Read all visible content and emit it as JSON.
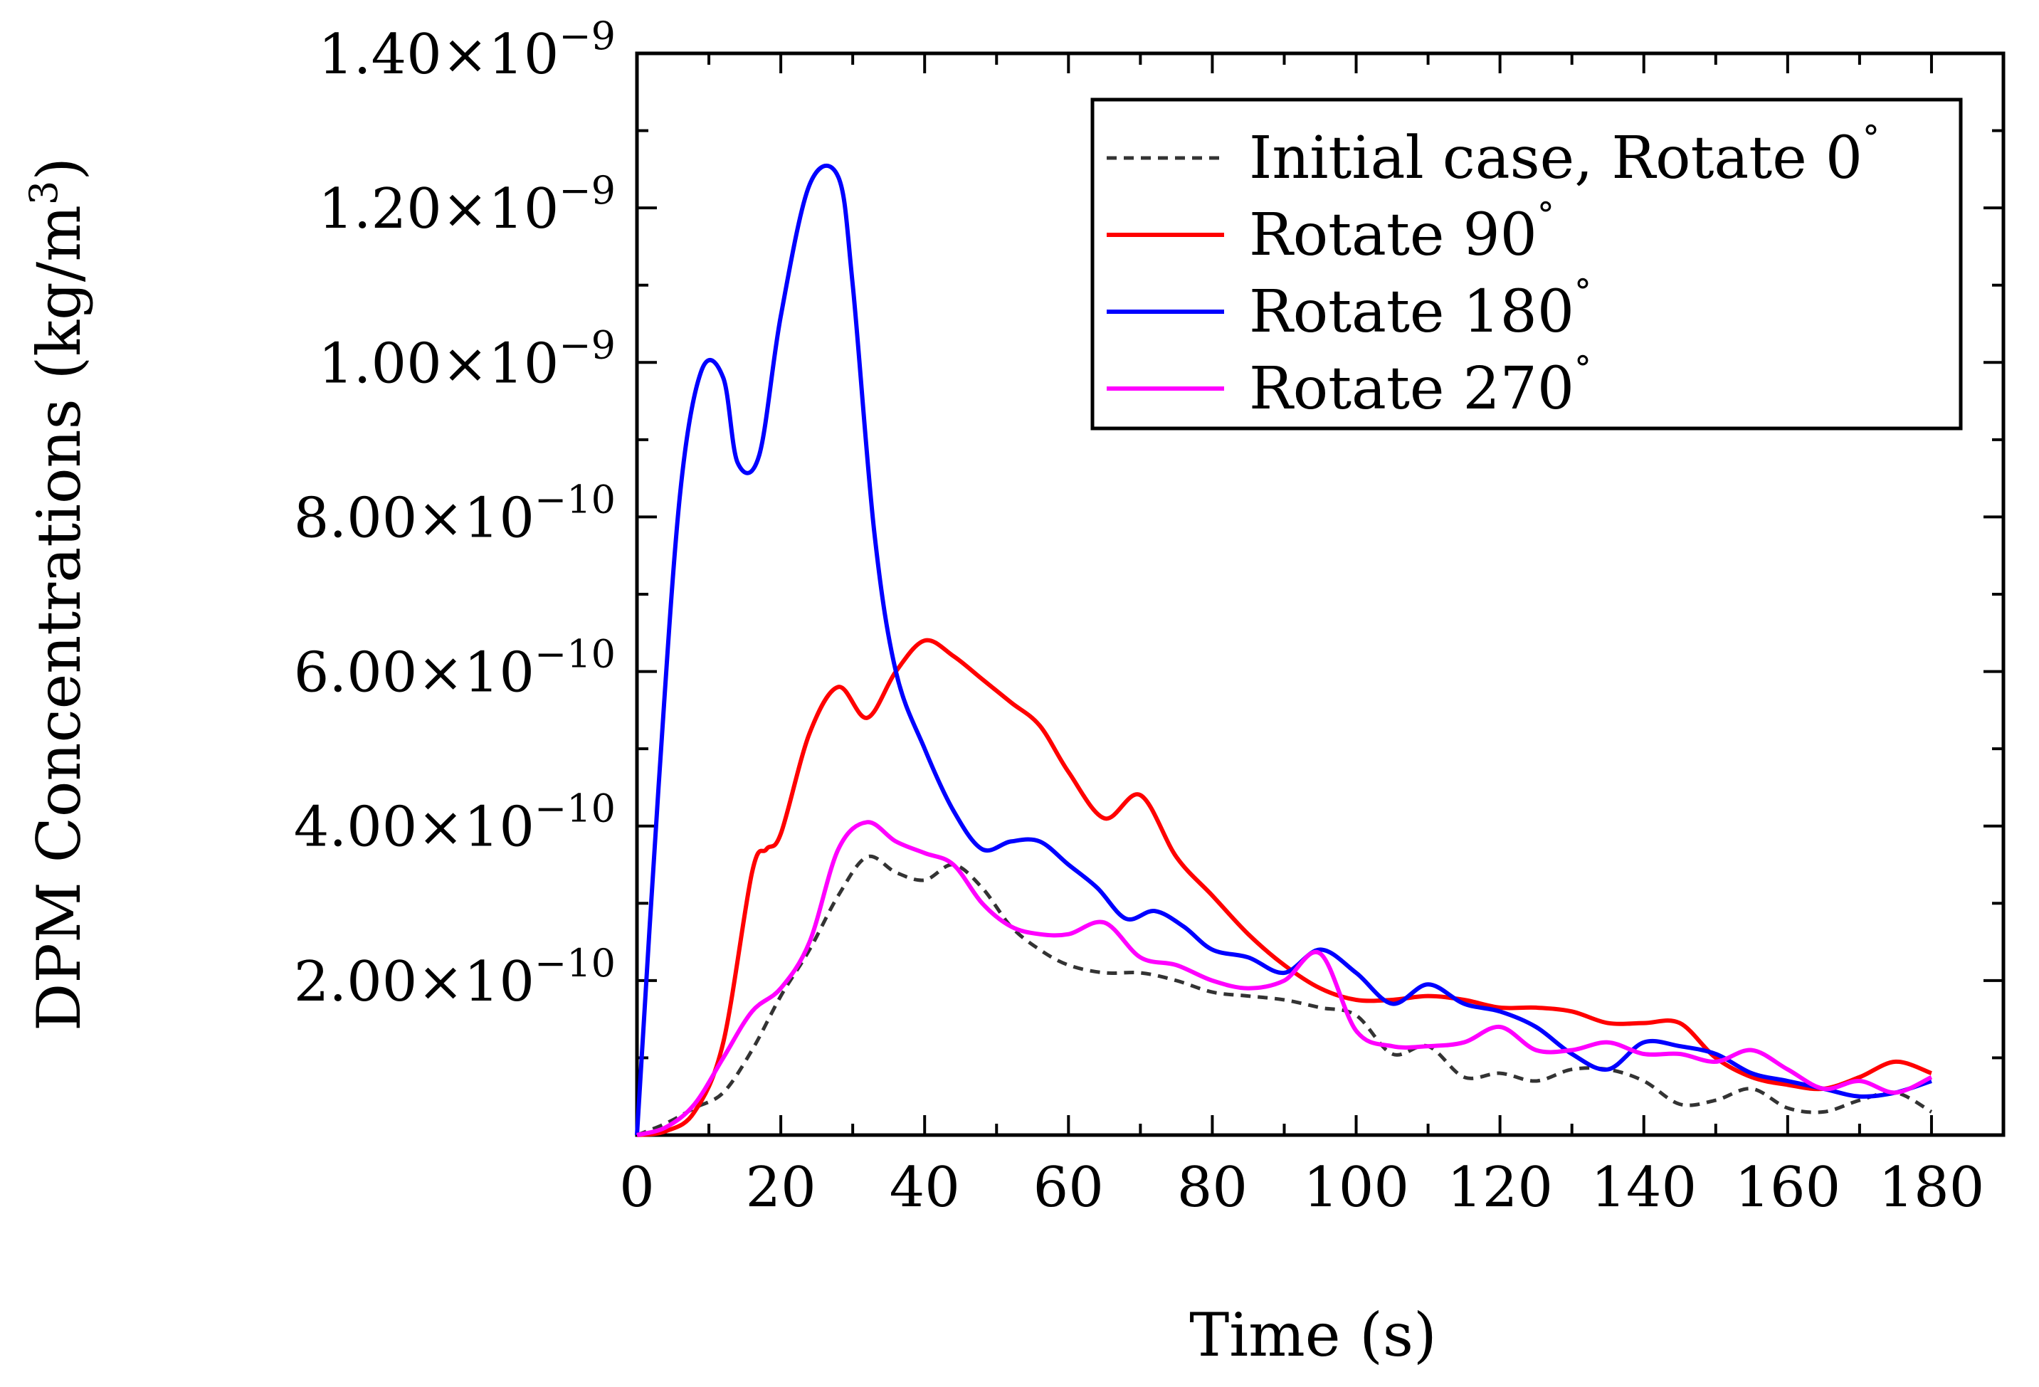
{
  "chart_data": {
    "type": "line",
    "title": "",
    "xlabel": "Time (s)",
    "ylabel_main": "DPM Concentrations (kg/m",
    "ylabel_sup": "3",
    "ylabel_close": ")",
    "xlim": [
      0,
      190
    ],
    "ylim": [
      0,
      1.4e-09
    ],
    "x_ticks": [
      0,
      20,
      40,
      60,
      80,
      100,
      120,
      140,
      160,
      180
    ],
    "x_tick_labels": [
      "0",
      "20",
      "40",
      "60",
      "80",
      "100",
      "120",
      "140",
      "160",
      "180"
    ],
    "y_ticks": [
      {
        "value": 2e-10,
        "mantissa": "2.00",
        "times": "×",
        "base": "10",
        "exponent": "−10"
      },
      {
        "value": 4e-10,
        "mantissa": "4.00",
        "times": "×",
        "base": "10",
        "exponent": "−10"
      },
      {
        "value": 6e-10,
        "mantissa": "6.00",
        "times": "×",
        "base": "10",
        "exponent": "−10"
      },
      {
        "value": 8e-10,
        "mantissa": "8.00",
        "times": "×",
        "base": "10",
        "exponent": "−10"
      },
      {
        "value": 1e-09,
        "mantissa": "1.00",
        "times": "×",
        "base": "10",
        "exponent": "−9"
      },
      {
        "value": 1.2e-09,
        "mantissa": "1.20",
        "times": "×",
        "base": "10",
        "exponent": "−9"
      },
      {
        "value": 1.4e-09,
        "mantissa": "1.40",
        "times": "×",
        "base": "10",
        "exponent": "−9"
      }
    ],
    "legend_position": "top-right",
    "series": [
      {
        "name": "Initial case, Rotate 0",
        "degree": "°",
        "color": "#333333",
        "dash": true,
        "x": [
          0,
          4,
          8,
          12,
          16,
          20,
          24,
          28,
          32,
          36,
          40,
          44,
          48,
          52,
          56,
          60,
          65,
          70,
          75,
          80,
          85,
          90,
          95,
          100,
          105,
          110,
          115,
          120,
          125,
          130,
          135,
          140,
          145,
          150,
          155,
          160,
          165,
          170,
          175,
          180
        ],
        "y": [
          0,
          1.5e-11,
          3.5e-11,
          5.5e-11,
          1.1e-10,
          1.8e-10,
          2.4e-10,
          3.1e-10,
          3.6e-10,
          3.4e-10,
          3.3e-10,
          3.5e-10,
          3.2e-10,
          2.7e-10,
          2.4e-10,
          2.2e-10,
          2.1e-10,
          2.1e-10,
          2e-10,
          1.85e-10,
          1.8e-10,
          1.75e-10,
          1.65e-10,
          1.55e-10,
          1.05e-10,
          1.15e-10,
          7.5e-11,
          8e-11,
          7e-11,
          8.5e-11,
          8.5e-11,
          7e-11,
          4e-11,
          4.5e-11,
          6e-11,
          3.5e-11,
          3e-11,
          4.5e-11,
          5.5e-11,
          3e-11
        ]
      },
      {
        "name": "Rotate 90",
        "degree": "°",
        "color": "#ff0000",
        "dash": false,
        "x": [
          0,
          4,
          8,
          12,
          16,
          18,
          20,
          24,
          28,
          32,
          36,
          40,
          44,
          48,
          52,
          56,
          60,
          65,
          70,
          75,
          80,
          85,
          90,
          95,
          100,
          105,
          110,
          115,
          120,
          125,
          130,
          135,
          140,
          145,
          150,
          155,
          160,
          165,
          170,
          175,
          180
        ],
        "y": [
          0,
          5e-12,
          3e-11,
          1.2e-10,
          3.4e-10,
          3.7e-10,
          3.9e-10,
          5.2e-10,
          5.8e-10,
          5.4e-10,
          6e-10,
          6.4e-10,
          6.2e-10,
          5.9e-10,
          5.6e-10,
          5.3e-10,
          4.7e-10,
          4.1e-10,
          4.4e-10,
          3.6e-10,
          3.1e-10,
          2.6e-10,
          2.2e-10,
          1.9e-10,
          1.75e-10,
          1.75e-10,
          1.8e-10,
          1.75e-10,
          1.65e-10,
          1.65e-10,
          1.6e-10,
          1.45e-10,
          1.45e-10,
          1.45e-10,
          1e-10,
          7.5e-11,
          6.5e-11,
          6e-11,
          7.5e-11,
          9.5e-11,
          8e-11
        ]
      },
      {
        "name": "Rotate 180",
        "degree": "°",
        "color": "#0000ff",
        "dash": false,
        "x": [
          0,
          3,
          6,
          9,
          12,
          14,
          17,
          20,
          24,
          28,
          30,
          33,
          36,
          40,
          44,
          48,
          52,
          56,
          60,
          64,
          68,
          72,
          76,
          80,
          85,
          90,
          95,
          100,
          105,
          110,
          115,
          120,
          125,
          130,
          135,
          140,
          145,
          150,
          155,
          160,
          165,
          170,
          175,
          180
        ],
        "y": [
          0,
          4.5e-10,
          8.3e-10,
          9.9e-10,
          9.8e-10,
          8.7e-10,
          8.8e-10,
          1.06e-09,
          1.23e-09,
          1.24e-09,
          1.1e-09,
          7.8e-10,
          6e-10,
          5e-10,
          4.2e-10,
          3.7e-10,
          3.8e-10,
          3.8e-10,
          3.5e-10,
          3.2e-10,
          2.8e-10,
          2.9e-10,
          2.7e-10,
          2.4e-10,
          2.3e-10,
          2.1e-10,
          2.4e-10,
          2.1e-10,
          1.7e-10,
          1.95e-10,
          1.7e-10,
          1.6e-10,
          1.4e-10,
          1.05e-10,
          8.5e-11,
          1.2e-10,
          1.15e-10,
          1.05e-10,
          8e-11,
          7e-11,
          6e-11,
          5e-11,
          5.5e-11,
          7e-11
        ]
      },
      {
        "name": "Rotate 270",
        "degree": "°",
        "color": "#ff00ff",
        "dash": false,
        "x": [
          0,
          4,
          8,
          12,
          16,
          20,
          24,
          28,
          32,
          36,
          40,
          44,
          48,
          52,
          56,
          60,
          65,
          70,
          75,
          80,
          85,
          90,
          95,
          100,
          105,
          110,
          115,
          120,
          125,
          130,
          135,
          140,
          145,
          150,
          155,
          160,
          165,
          170,
          175,
          180
        ],
        "y": [
          0,
          1e-11,
          4e-11,
          1e-10,
          1.6e-10,
          1.9e-10,
          2.5e-10,
          3.7e-10,
          4.05e-10,
          3.8e-10,
          3.65e-10,
          3.5e-10,
          3e-10,
          2.7e-10,
          2.6e-10,
          2.6e-10,
          2.75e-10,
          2.3e-10,
          2.2e-10,
          2e-10,
          1.9e-10,
          2e-10,
          2.35e-10,
          1.35e-10,
          1.15e-10,
          1.15e-10,
          1.2e-10,
          1.4e-10,
          1.1e-10,
          1.1e-10,
          1.2e-10,
          1.05e-10,
          1.05e-10,
          9.5e-11,
          1.1e-10,
          8.5e-11,
          6e-11,
          7e-11,
          5.5e-11,
          7.5e-11
        ]
      }
    ]
  }
}
